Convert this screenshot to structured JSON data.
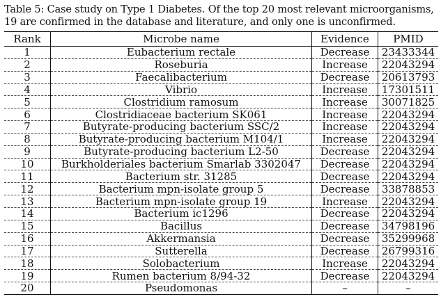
{
  "caption": "Table 5: Case study on Type 1 Diabetes. Of the top 20 most relevant microorganisms, 19 are confirmed in the database and literature, and only one is unconfirmed.",
  "table": {
    "headers": {
      "rank": "Rank",
      "name": "Microbe name",
      "evidence": "Evidence",
      "pmid": "PMID"
    },
    "rows": [
      {
        "rank": "1",
        "name": "Eubacterium rectale",
        "evidence": "Decrease",
        "pmid": "23433344"
      },
      {
        "rank": "2",
        "name": "Roseburia",
        "evidence": "Increase",
        "pmid": "22043294"
      },
      {
        "rank": "3",
        "name": "Faecalibacterium",
        "evidence": "Decrease",
        "pmid": "20613793"
      },
      {
        "rank": "4",
        "name": "Vibrio",
        "evidence": "Increase",
        "pmid": "17301511"
      },
      {
        "rank": "5",
        "name": "Clostridium ramosum",
        "evidence": "Increase",
        "pmid": "30071825"
      },
      {
        "rank": "6",
        "name": "Clostridiaceae bacterium SK061",
        "evidence": "Increase",
        "pmid": "22043294"
      },
      {
        "rank": "7",
        "name": "Butyrate-producing bacterium SSC/2",
        "evidence": "Increase",
        "pmid": "22043294"
      },
      {
        "rank": "8",
        "name": "Butyrate-producing bacterium M104/1",
        "evidence": "Increase",
        "pmid": "22043294"
      },
      {
        "rank": "9",
        "name": "Butyrate-producing bacterium L2-50",
        "evidence": "Decrease",
        "pmid": "22043294"
      },
      {
        "rank": "10",
        "name": "Burkholderiales bacterium Smarlab 3302047",
        "evidence": "Decrease",
        "pmid": "22043294"
      },
      {
        "rank": "11",
        "name": "Bacterium str. 31285",
        "evidence": "Decrease",
        "pmid": "22043294"
      },
      {
        "rank": "12",
        "name": "Bacterium mpn-isolate group 5",
        "evidence": "Decrease",
        "pmid": "33878853"
      },
      {
        "rank": "13",
        "name": "Bacterium mpn-isolate group 19",
        "evidence": "Increase",
        "pmid": "22043294"
      },
      {
        "rank": "14",
        "name": "Bacterium ic1296",
        "evidence": "Decrease",
        "pmid": "22043294"
      },
      {
        "rank": "15",
        "name": "Bacillus",
        "evidence": "Decrease",
        "pmid": "34798196"
      },
      {
        "rank": "16",
        "name": "Akkermansia",
        "evidence": "Decrease",
        "pmid": "35299968"
      },
      {
        "rank": "17",
        "name": "Sutterella",
        "evidence": "Decrease",
        "pmid": "26799316"
      },
      {
        "rank": "18",
        "name": "Solobacterium",
        "evidence": "Increase",
        "pmid": "22043294"
      },
      {
        "rank": "19",
        "name": "Rumen bacterium 8/94-32",
        "evidence": "Decrease",
        "pmid": "22043294"
      },
      {
        "rank": "20",
        "name": "Pseudomonas",
        "evidence": "–",
        "pmid": "–"
      }
    ]
  }
}
